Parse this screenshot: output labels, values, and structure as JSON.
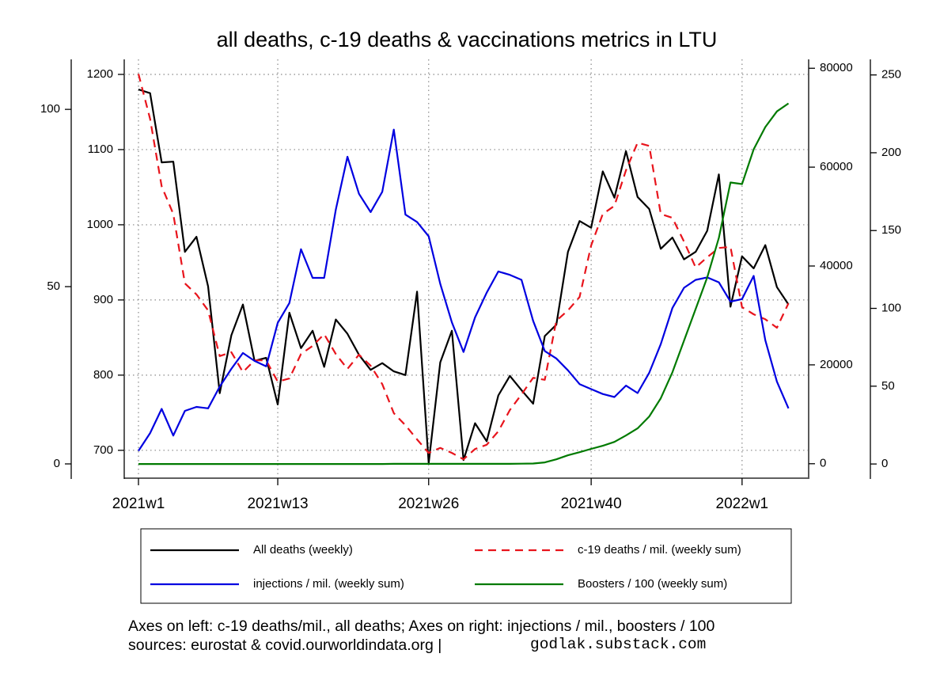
{
  "chart_data": {
    "type": "line",
    "title": "all deaths, c-19 deaths & vaccinations metrics in LTU",
    "categories": [
      "2021w1",
      null,
      null,
      null,
      null,
      null,
      null,
      null,
      null,
      null,
      null,
      null,
      "2021w13",
      null,
      null,
      null,
      null,
      null,
      null,
      null,
      null,
      null,
      null,
      null,
      null,
      "2021w26",
      null,
      null,
      null,
      null,
      null,
      null,
      null,
      null,
      null,
      null,
      null,
      null,
      null,
      "2021w40",
      null,
      null,
      null,
      null,
      null,
      null,
      null,
      null,
      null,
      null,
      null,
      null,
      "2022w1",
      null,
      null,
      null,
      null
    ],
    "y_axes": [
      {
        "ylim": [
          -3.8,
          114.1
        ],
        "yticks": [
          0,
          50,
          100
        ]
      },
      {
        "ylim": [
          664,
          1220
        ],
        "yticks": [
          700,
          800,
          900,
          1000,
          1100,
          1200
        ]
      },
      {
        "ylim": [
          -2760,
          81800
        ],
        "yticks": [
          0,
          20000,
          40000,
          60000,
          80000
        ]
      },
      {
        "ylim": [
          -8.6,
          260
        ],
        "yticks": [
          0,
          50,
          100,
          150,
          200,
          250
        ]
      }
    ],
    "grid": true,
    "series": [
      {
        "name": "All deaths (weekly)",
        "color": "#000000",
        "linestyle": "solid",
        "axis": 1,
        "values": [
          1180,
          1175,
          1083,
          1084,
          964,
          984,
          918,
          776,
          853,
          894,
          819,
          823,
          761,
          883,
          836,
          859,
          811,
          874,
          855,
          827,
          807,
          816,
          805,
          800,
          911,
          683,
          817,
          859,
          687,
          736,
          712,
          773,
          799,
          780,
          762,
          852,
          867,
          964,
          1005,
          996,
          1071,
          1036,
          1098,
          1037,
          1021,
          968,
          983,
          954,
          964,
          992,
          1067,
          891,
          958,
          942,
          973,
          917,
          894
        ]
      },
      {
        "name": "c-19 deaths / mil. (weekly sum)",
        "color": "#e8141c",
        "linestyle": "dashed",
        "axis": 0,
        "values": [
          110.0,
          97.3,
          78.3,
          70.5,
          50.9,
          47.8,
          43.3,
          30.4,
          31.5,
          25.9,
          29.2,
          29.2,
          23.2,
          24.1,
          31.0,
          33.3,
          36.6,
          31.0,
          26.8,
          30.8,
          27.7,
          22.5,
          14.3,
          10.9,
          6.9,
          3.1,
          4.5,
          3.1,
          1.3,
          4.2,
          5.4,
          9.2,
          15.2,
          19.6,
          24.3,
          23.7,
          40.4,
          43.3,
          47.1,
          61.6,
          70.5,
          72.8,
          82.8,
          90.6,
          89.7,
          70.5,
          69.4,
          62.7,
          55.4,
          58.3,
          60.9,
          61.2,
          44.2,
          42.2,
          40.8,
          38.4,
          45.3
        ]
      },
      {
        "name": "injections / mil. (weekly sum)",
        "color": "#0000e0",
        "linestyle": "solid",
        "axis": 2,
        "values": [
          2600,
          6200,
          11100,
          5700,
          10700,
          11500,
          11200,
          15600,
          19200,
          22400,
          20800,
          19700,
          28500,
          32500,
          43400,
          37600,
          37600,
          51400,
          62100,
          54600,
          50900,
          55000,
          67600,
          50400,
          48900,
          46000,
          36400,
          28600,
          22600,
          29600,
          34600,
          38900,
          38200,
          37200,
          28900,
          22800,
          21300,
          18900,
          16100,
          15100,
          14100,
          13500,
          15800,
          14300,
          18400,
          24200,
          31500,
          35600,
          37200,
          37700,
          36700,
          32800,
          33300,
          38000,
          25000,
          16600,
          11200
        ]
      },
      {
        "name": "Boosters / 100 (weekly sum)",
        "color": "#007a00",
        "linestyle": "solid",
        "axis": 3,
        "values": [
          0,
          0,
          0,
          0,
          0,
          0,
          0,
          0,
          0,
          0,
          0,
          0,
          0,
          0,
          0,
          0,
          0,
          0,
          0,
          0,
          0,
          0,
          0.1,
          0.1,
          0.1,
          0.1,
          0.1,
          0.1,
          0.1,
          0.1,
          0.1,
          0.1,
          0.1,
          0.2,
          0.3,
          1.0,
          3.0,
          5.6,
          7.6,
          9.7,
          11.7,
          14.2,
          18.3,
          22.9,
          30.5,
          42.2,
          58.9,
          79.3,
          99.6,
          119.9,
          145.3,
          180.9,
          179.9,
          202.2,
          216.5,
          226.6,
          231.7
        ]
      }
    ],
    "notes": [
      "Axes on left: c-19 deaths/mil., all deaths; Axes on right: injections / mil., boosters / 100",
      "sources: eurostat & covid.ourworldindata.org |"
    ],
    "credit": "godlak.substack.com"
  }
}
